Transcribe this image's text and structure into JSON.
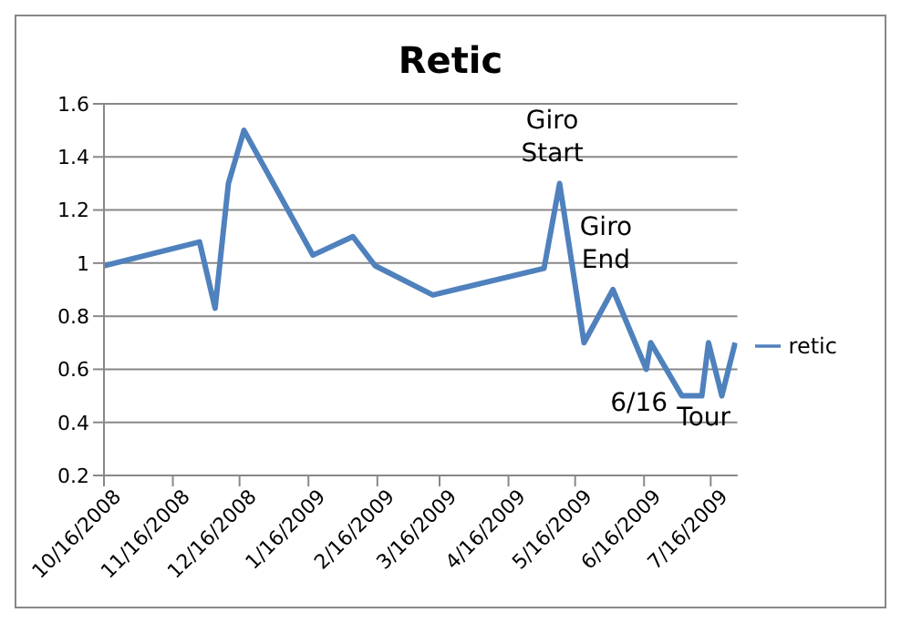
{
  "chart_data": {
    "type": "line",
    "title": "Retic",
    "x": [
      "2008-10-16",
      "2008-11-28",
      "2008-12-05",
      "2008-12-11",
      "2008-12-18",
      "2009-01-18",
      "2009-02-05",
      "2009-02-15",
      "2009-03-13",
      "2009-05-02",
      "2009-05-09",
      "2009-05-20",
      "2009-06-02",
      "2009-06-17",
      "2009-06-19",
      "2009-07-03",
      "2009-07-12",
      "2009-07-15",
      "2009-07-21",
      "2009-07-27"
    ],
    "series": [
      {
        "name": "retic",
        "color": "#4f81bd",
        "values": [
          0.99,
          1.08,
          0.83,
          1.3,
          1.5,
          1.03,
          1.1,
          0.99,
          0.88,
          0.98,
          1.3,
          0.7,
          0.9,
          0.6,
          0.7,
          0.5,
          0.5,
          0.7,
          0.5,
          0.7
        ]
      }
    ],
    "xlim": [
      "2008-10-16",
      "2009-07-28"
    ],
    "xticks": [
      {
        "value": "2008-10-16",
        "label": "10/16/2008"
      },
      {
        "value": "2008-11-16",
        "label": "11/16/2008"
      },
      {
        "value": "2008-12-16",
        "label": "12/16/2008"
      },
      {
        "value": "2009-01-16",
        "label": "1/16/2009"
      },
      {
        "value": "2009-02-16",
        "label": "2/16/2009"
      },
      {
        "value": "2009-03-16",
        "label": "3/16/2009"
      },
      {
        "value": "2009-04-16",
        "label": "4/16/2009"
      },
      {
        "value": "2009-05-16",
        "label": "5/16/2009"
      },
      {
        "value": "2009-06-16",
        "label": "6/16/2009"
      },
      {
        "value": "2009-07-16",
        "label": "7/16/2009"
      }
    ],
    "ylim": [
      0.2,
      1.6
    ],
    "yticks": [
      0.2,
      0.4,
      0.6,
      0.8,
      1,
      1.2,
      1.4,
      1.6
    ],
    "annotations": [
      {
        "text": "Giro Start",
        "x": "2009-05-09",
        "y": 1.3
      },
      {
        "text": "Giro End",
        "x": "2009-05-20",
        "y": 0.7
      },
      {
        "text": "6/16",
        "x": "2009-06-17",
        "y": 0.6
      },
      {
        "text": "Tour",
        "x": "2009-07-03",
        "y": 0.5
      }
    ],
    "grid": "y",
    "legend": "right",
    "marker": "none",
    "line_style": "solid"
  }
}
